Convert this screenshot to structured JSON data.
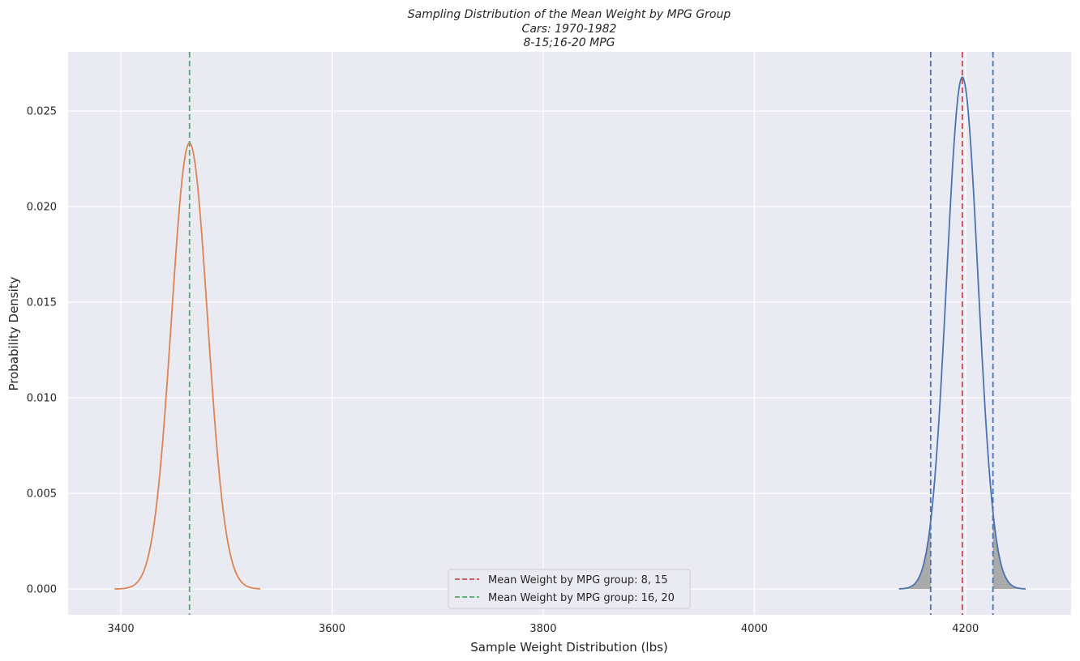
{
  "chart_data": {
    "type": "line",
    "title_lines": [
      "Sampling Distribution of the Mean Weight by MPG Group",
      "Cars: 1970-1982",
      "8-15;16-20 MPG"
    ],
    "xlabel": "Sample Weight Distribution (lbs)",
    "ylabel": "Probability Density",
    "xlim": [
      3350,
      4300
    ],
    "ylim": [
      -0.00135,
      0.0281
    ],
    "x_ticks": [
      3400,
      3600,
      3800,
      4000,
      4200
    ],
    "x_tick_labels": [
      "3400",
      "3600",
      "3800",
      "4000",
      "4200"
    ],
    "y_ticks": [
      0.0,
      0.005,
      0.01,
      0.015,
      0.02,
      0.025
    ],
    "y_tick_labels": [
      "0.000",
      "0.005",
      "0.010",
      "0.015",
      "0.020",
      "0.025"
    ],
    "grid": true,
    "series": [
      {
        "kind": "normal-pdf",
        "mean": 3465,
        "std": 17.1,
        "x_range": [
          3394,
          3532
        ],
        "color": "#dd8452"
      },
      {
        "kind": "normal-pdf",
        "mean": 4197,
        "std": 14.9,
        "x_range": [
          4137,
          4257
        ],
        "color": "#4c72b0",
        "shaded_tails": [
          4167,
          4226
        ],
        "shade_color": "#aaaaaa"
      }
    ],
    "vlines": [
      {
        "x": 3465,
        "color": "#55a868",
        "style": "dashed",
        "legend": "Mean Weight by MPG group: 16, 20"
      },
      {
        "x": 4197,
        "color": "#c44e52",
        "style": "dashed",
        "legend": "Mean Weight by MPG group: 8, 15"
      },
      {
        "x": 4167,
        "color": "#4c72b0",
        "style": "dashed"
      },
      {
        "x": 4226,
        "color": "#4c72b0",
        "style": "dashed"
      }
    ],
    "legend": {
      "placement": "lower-center",
      "entries": [
        {
          "label": "Mean Weight by MPG group: 8, 15",
          "color": "#c44e52"
        },
        {
          "label": "Mean Weight by MPG group: 16, 20",
          "color": "#55a868"
        }
      ]
    },
    "colors": {
      "plot_background": "#eaeaf2",
      "grid": "#ffffff",
      "text": "#262626"
    }
  }
}
